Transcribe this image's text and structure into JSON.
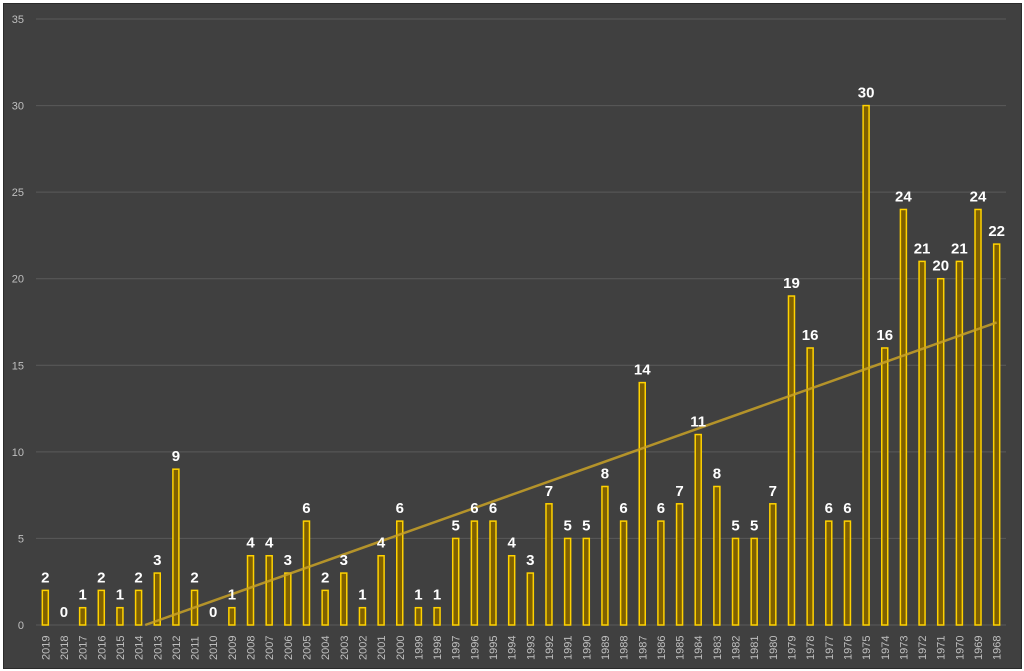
{
  "chart_data": {
    "type": "bar",
    "categories": [
      "2019",
      "2018",
      "2017",
      "2016",
      "2015",
      "2014",
      "2013",
      "2012",
      "2011",
      "2010",
      "2009",
      "2008",
      "2007",
      "2006",
      "2005",
      "2004",
      "2003",
      "2002",
      "2001",
      "2000",
      "1999",
      "1998",
      "1997",
      "1996",
      "1995",
      "1994",
      "1993",
      "1992",
      "1991",
      "1990",
      "1989",
      "1988",
      "1987",
      "1986",
      "1985",
      "1984",
      "1983",
      "1982",
      "1981",
      "1980",
      "1979",
      "1978",
      "1977",
      "1976",
      "1975",
      "1974",
      "1973",
      "1972",
      "1971",
      "1970",
      "1969",
      "1968"
    ],
    "values": [
      2,
      0,
      1,
      2,
      1,
      2,
      3,
      9,
      2,
      0,
      1,
      4,
      4,
      3,
      6,
      2,
      3,
      1,
      4,
      6,
      1,
      1,
      5,
      6,
      6,
      4,
      3,
      7,
      5,
      5,
      8,
      6,
      14,
      6,
      7,
      11,
      8,
      5,
      5,
      7,
      19,
      16,
      6,
      6,
      30,
      16,
      24,
      21,
      20,
      21,
      24,
      22
    ],
    "ylim": [
      0,
      35
    ],
    "yticks": [
      0,
      5,
      10,
      15,
      20,
      25,
      30,
      35
    ],
    "trendline": "linear",
    "grid": true,
    "colors": {
      "background": "#404040",
      "bar_fill": "#7f6000",
      "bar_stroke": "#ffd200",
      "trendline": "#c9a227",
      "grid": "#5a5a5a",
      "tick_text": "#bfbfbf",
      "label_text": "#ffffff"
    }
  }
}
